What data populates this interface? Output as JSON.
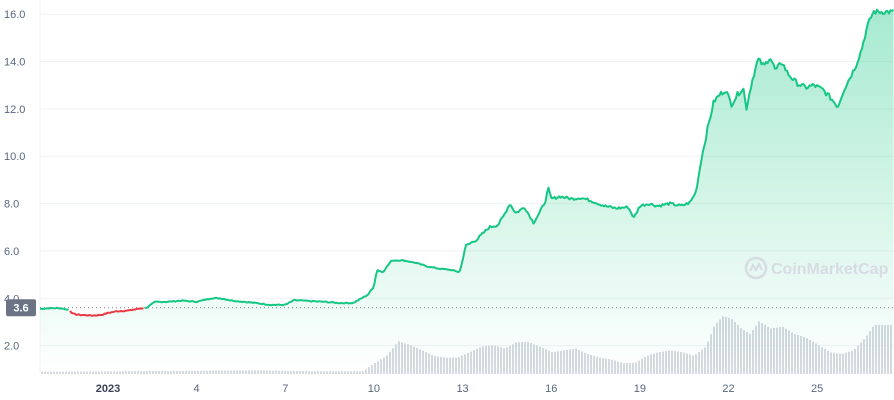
{
  "chart_data": {
    "type": "area",
    "y_ticks": [
      "2.0",
      "4.0",
      "6.0",
      "8.0",
      "10.0",
      "12.0",
      "14.0",
      "16.0"
    ],
    "ylim": [
      0.8,
      16.6
    ],
    "x_range": [
      -2.3,
      26.6
    ],
    "x_ticks": [
      {
        "x": 0,
        "label": "2023",
        "bold": true
      },
      {
        "x": 3,
        "label": "4"
      },
      {
        "x": 6,
        "label": "7"
      },
      {
        "x": 9,
        "label": "10"
      },
      {
        "x": 12,
        "label": "13"
      },
      {
        "x": 15,
        "label": "16"
      },
      {
        "x": 18,
        "label": "19"
      },
      {
        "x": 21,
        "label": "22"
      },
      {
        "x": 24,
        "label": "25"
      }
    ],
    "price_series": [
      [
        -2.3,
        3.55
      ],
      [
        -2.0,
        3.58
      ],
      [
        -1.6,
        3.58
      ],
      [
        -1.3,
        3.5
      ],
      [
        -1.2,
        3.35
      ],
      [
        -1.0,
        3.3
      ],
      [
        -0.5,
        3.27
      ],
      [
        -0.2,
        3.3
      ],
      [
        0.0,
        3.38
      ],
      [
        0.3,
        3.45
      ],
      [
        0.7,
        3.48
      ],
      [
        1.0,
        3.55
      ],
      [
        1.3,
        3.6
      ],
      [
        1.6,
        3.85
      ],
      [
        2.0,
        3.85
      ],
      [
        2.5,
        3.9
      ],
      [
        3.0,
        3.85
      ],
      [
        3.5,
        4.0
      ],
      [
        3.8,
        4.0
      ],
      [
        4.2,
        3.9
      ],
      [
        4.6,
        3.85
      ],
      [
        5.0,
        3.8
      ],
      [
        5.5,
        3.72
      ],
      [
        6.0,
        3.72
      ],
      [
        6.3,
        3.92
      ],
      [
        6.8,
        3.88
      ],
      [
        7.3,
        3.85
      ],
      [
        7.8,
        3.8
      ],
      [
        8.3,
        3.8
      ],
      [
        8.8,
        4.15
      ],
      [
        9.0,
        4.5
      ],
      [
        9.1,
        5.2
      ],
      [
        9.3,
        5.1
      ],
      [
        9.6,
        5.6
      ],
      [
        10.0,
        5.6
      ],
      [
        10.4,
        5.5
      ],
      [
        10.8,
        5.35
      ],
      [
        11.2,
        5.25
      ],
      [
        11.6,
        5.2
      ],
      [
        11.9,
        5.1
      ],
      [
        12.0,
        5.6
      ],
      [
        12.1,
        6.2
      ],
      [
        12.5,
        6.5
      ],
      [
        12.9,
        7.0
      ],
      [
        13.2,
        7.1
      ],
      [
        13.4,
        7.5
      ],
      [
        13.6,
        8.0
      ],
      [
        13.8,
        7.6
      ],
      [
        14.1,
        7.85
      ],
      [
        14.4,
        7.2
      ],
      [
        14.6,
        7.6
      ],
      [
        14.8,
        8.1
      ],
      [
        14.9,
        8.65
      ],
      [
        15.0,
        8.2
      ],
      [
        15.3,
        8.3
      ],
      [
        15.7,
        8.2
      ],
      [
        16.0,
        8.25
      ],
      [
        16.4,
        8.1
      ],
      [
        16.8,
        7.9
      ],
      [
        17.2,
        7.8
      ],
      [
        17.6,
        7.85
      ],
      [
        17.8,
        7.4
      ],
      [
        18.0,
        7.9
      ],
      [
        18.3,
        8.0
      ],
      [
        18.6,
        7.9
      ],
      [
        19.0,
        8.0
      ],
      [
        19.4,
        7.9
      ],
      [
        19.7,
        8.05
      ],
      [
        19.9,
        8.5
      ],
      [
        20.1,
        10.0
      ],
      [
        20.3,
        11.2
      ],
      [
        20.5,
        12.3
      ],
      [
        20.7,
        12.6
      ],
      [
        20.9,
        12.8
      ],
      [
        21.1,
        12.2
      ],
      [
        21.3,
        12.6
      ],
      [
        21.5,
        12.9
      ],
      [
        21.6,
        12.0
      ],
      [
        21.8,
        13.2
      ],
      [
        22.0,
        14.1
      ],
      [
        22.2,
        13.8
      ],
      [
        22.4,
        14.2
      ],
      [
        22.6,
        13.6
      ],
      [
        22.8,
        14.0
      ],
      [
        23.0,
        13.5
      ],
      [
        23.3,
        13.1
      ],
      [
        23.6,
        12.9
      ],
      [
        23.9,
        13.0
      ],
      [
        24.2,
        12.8
      ],
      [
        24.5,
        12.4
      ],
      [
        24.7,
        12.1
      ],
      [
        24.9,
        12.8
      ],
      [
        25.1,
        13.3
      ],
      [
        25.3,
        13.8
      ],
      [
        25.5,
        14.5
      ],
      [
        25.7,
        15.5
      ],
      [
        25.9,
        16.1
      ]
    ],
    "red_segment_x": [
      -1.3,
      1.25
    ],
    "volume_series": [
      [
        -2.3,
        0.12
      ],
      [
        3.0,
        0.18
      ],
      [
        5.0,
        0.2
      ],
      [
        7.0,
        0.15
      ],
      [
        8.6,
        0.15
      ],
      [
        9.0,
        0.6
      ],
      [
        9.4,
        1.0
      ],
      [
        9.8,
        1.8
      ],
      [
        10.2,
        1.6
      ],
      [
        10.6,
        1.3
      ],
      [
        11.0,
        1.0
      ],
      [
        11.4,
        0.9
      ],
      [
        11.8,
        0.9
      ],
      [
        12.2,
        1.2
      ],
      [
        12.6,
        1.5
      ],
      [
        13.0,
        1.6
      ],
      [
        13.4,
        1.4
      ],
      [
        13.8,
        1.75
      ],
      [
        14.2,
        1.75
      ],
      [
        14.6,
        1.5
      ],
      [
        15.0,
        1.2
      ],
      [
        15.4,
        1.3
      ],
      [
        15.8,
        1.4
      ],
      [
        16.2,
        1.1
      ],
      [
        16.6,
        0.9
      ],
      [
        17.0,
        0.8
      ],
      [
        17.4,
        0.6
      ],
      [
        17.8,
        0.6
      ],
      [
        18.2,
        1.0
      ],
      [
        18.6,
        1.2
      ],
      [
        19.0,
        1.3
      ],
      [
        19.4,
        1.2
      ],
      [
        19.8,
        1.0
      ],
      [
        20.2,
        1.5
      ],
      [
        20.5,
        2.7
      ],
      [
        20.8,
        3.2
      ],
      [
        21.1,
        3.0
      ],
      [
        21.4,
        2.5
      ],
      [
        21.7,
        2.2
      ],
      [
        22.0,
        2.9
      ],
      [
        22.4,
        2.5
      ],
      [
        22.8,
        2.6
      ],
      [
        23.2,
        2.2
      ],
      [
        23.6,
        2.0
      ],
      [
        24.0,
        1.6
      ],
      [
        24.4,
        1.2
      ],
      [
        24.8,
        1.1
      ],
      [
        25.2,
        1.3
      ],
      [
        25.6,
        2.0
      ],
      [
        25.9,
        2.7
      ]
    ],
    "volume_max": 3.3,
    "current_price_label": "3.6",
    "current_price_y": 3.6,
    "line_color_up": "#16c784",
    "line_color_down": "#ea3943",
    "watermark": "CoinMarketCap"
  }
}
